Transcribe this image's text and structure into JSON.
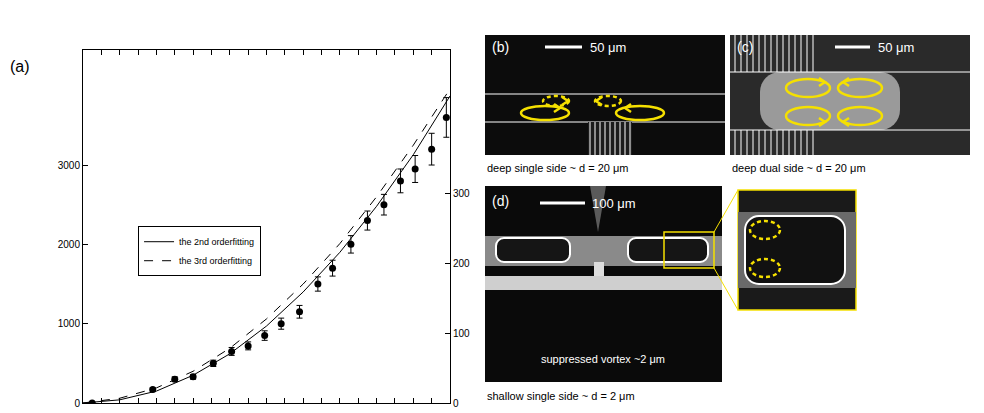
{
  "chart_data": {
    "type": "scatter",
    "label": "(a)",
    "xlim": [
      0,
      20
    ],
    "xticks": [
      0,
      1,
      2,
      3,
      4,
      5,
      6,
      7,
      8,
      9,
      10,
      11,
      12,
      13,
      14,
      15,
      16,
      17,
      18,
      19,
      20
    ],
    "ylim": [
      0,
      4450
    ],
    "yticks": [
      0,
      1000,
      2000,
      3000
    ],
    "y2lim": [
      0,
      505
    ],
    "y2ticks": [
      0,
      100,
      200,
      300
    ],
    "tick_labels": "y",
    "legend": "left",
    "series": [
      {
        "type": "scatter",
        "marker": "circle",
        "color": "#000000",
        "x": [
          0.5,
          3.8,
          5,
          6,
          7.1,
          8.1,
          9,
          9.9,
          10.8,
          11.8,
          12.8,
          13.6,
          14.6,
          15.5,
          16.4,
          17.3,
          18.1,
          19,
          19.8
        ],
        "values": [
          0,
          170,
          300,
          330,
          500,
          650,
          720,
          850,
          1000,
          1150,
          1500,
          1700,
          2000,
          2300,
          2500,
          2800,
          2950,
          3200,
          3600
        ],
        "errors": [
          0,
          20,
          30,
          30,
          40,
          50,
          50,
          60,
          70,
          80,
          90,
          100,
          110,
          120,
          130,
          150,
          170,
          200,
          250
        ]
      },
      {
        "type": "line",
        "name": "the 2nd orderfitting",
        "line_style": "solid",
        "color": "#000000",
        "x": [
          0,
          2,
          4,
          6,
          8,
          10,
          12,
          14,
          16,
          18,
          20
        ],
        "values": [
          0,
          40,
          150,
          350,
          620,
          970,
          1400,
          1900,
          2480,
          3130,
          3870
        ]
      },
      {
        "type": "line",
        "name": "the 3rd orderfitting",
        "line_style": "dash",
        "color": "#000000",
        "x": [
          0,
          2,
          4,
          6,
          8,
          10,
          12,
          14,
          16,
          18,
          20
        ],
        "values": [
          0,
          60,
          190,
          400,
          690,
          1060,
          1500,
          2010,
          2600,
          3250,
          3960
        ]
      }
    ]
  },
  "panels": [
    {
      "label": "(b)",
      "scale_bar": "50 μm",
      "caption": "deep single side ~ d = 20 μm"
    },
    {
      "label": "(c)",
      "scale_bar": "50 μm",
      "caption": "deep dual side ~ d = 20 μm"
    },
    {
      "label": "(d)",
      "scale_bar": "100 μm",
      "note": "suppressed vortex ~2 μm",
      "caption": "shallow single side ~ d = 2 μm"
    }
  ]
}
